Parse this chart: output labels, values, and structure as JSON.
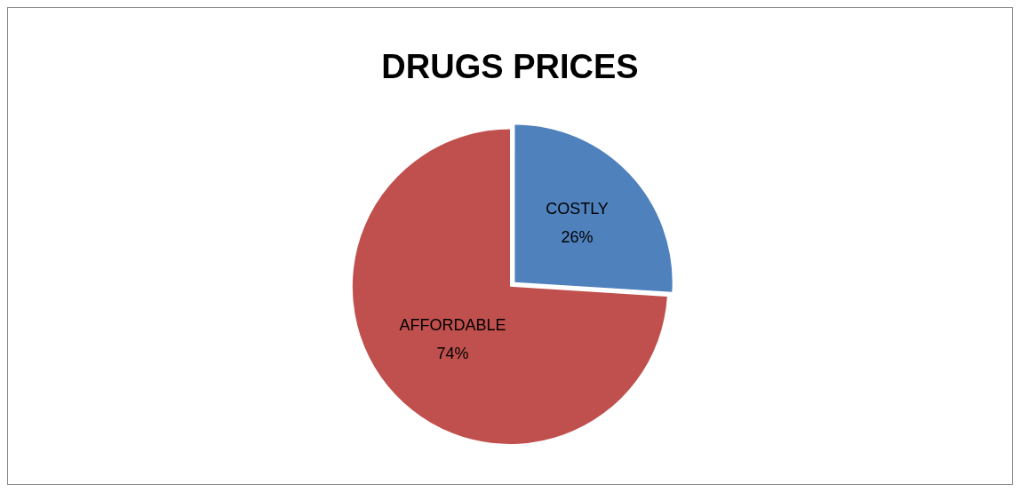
{
  "chart_data": {
    "type": "pie",
    "title": "DRUGS PRICES",
    "categories": [
      "COSTLY",
      "AFFORDABLE"
    ],
    "values": [
      26,
      74
    ],
    "colors": [
      "#4f81bd",
      "#c0504d"
    ],
    "value_labels": [
      "26%",
      "74%"
    ],
    "legend": false
  }
}
